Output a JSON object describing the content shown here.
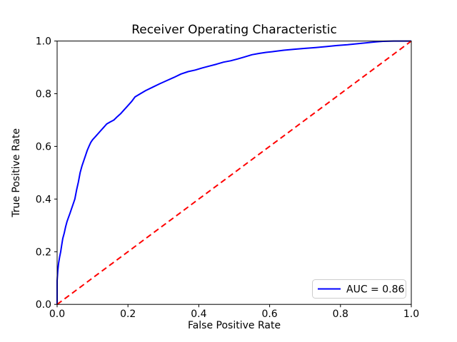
{
  "chart_data": {
    "type": "line",
    "title": "Receiver Operating Characteristic",
    "xlabel": "False Positive Rate",
    "ylabel": "True Positive Rate",
    "xlim": [
      0.0,
      1.0
    ],
    "ylim": [
      0.0,
      1.0
    ],
    "xticks": [
      0.0,
      0.2,
      0.4,
      0.6,
      0.8,
      1.0
    ],
    "ytick_labels": [
      "0.0",
      "0.2",
      "0.4",
      "0.6",
      "0.8",
      "1.0"
    ],
    "xtick_labels": [
      "0.0",
      "0.2",
      "0.4",
      "0.6",
      "0.8",
      "1.0"
    ],
    "yticks": [
      0.0,
      0.2,
      0.4,
      0.6,
      0.8,
      1.0
    ],
    "grid": false,
    "legend": {
      "position": "lower right",
      "label": "AUC = 0.86"
    },
    "colors": {
      "roc_curve": "#0000ff",
      "chance_line": "#ff0000",
      "spine": "#000000",
      "legend_border": "#cccccc",
      "background": "#ffffff"
    },
    "series": [
      {
        "name": "ROC curve",
        "color": "#0000ff",
        "style": "solid",
        "auc": 0.86,
        "points": [
          [
            0.0,
            0.0
          ],
          [
            0.0,
            0.09
          ],
          [
            0.002,
            0.13
          ],
          [
            0.004,
            0.155
          ],
          [
            0.007,
            0.18
          ],
          [
            0.01,
            0.2
          ],
          [
            0.013,
            0.225
          ],
          [
            0.016,
            0.25
          ],
          [
            0.02,
            0.27
          ],
          [
            0.024,
            0.295
          ],
          [
            0.028,
            0.315
          ],
          [
            0.032,
            0.33
          ],
          [
            0.036,
            0.345
          ],
          [
            0.04,
            0.36
          ],
          [
            0.045,
            0.38
          ],
          [
            0.05,
            0.4
          ],
          [
            0.055,
            0.435
          ],
          [
            0.06,
            0.465
          ],
          [
            0.065,
            0.5
          ],
          [
            0.07,
            0.525
          ],
          [
            0.075,
            0.545
          ],
          [
            0.08,
            0.565
          ],
          [
            0.085,
            0.585
          ],
          [
            0.09,
            0.6
          ],
          [
            0.095,
            0.615
          ],
          [
            0.1,
            0.625
          ],
          [
            0.11,
            0.64
          ],
          [
            0.12,
            0.655
          ],
          [
            0.13,
            0.67
          ],
          [
            0.14,
            0.685
          ],
          [
            0.15,
            0.693
          ],
          [
            0.16,
            0.7
          ],
          [
            0.17,
            0.713
          ],
          [
            0.18,
            0.725
          ],
          [
            0.19,
            0.74
          ],
          [
            0.2,
            0.755
          ],
          [
            0.21,
            0.77
          ],
          [
            0.22,
            0.788
          ],
          [
            0.235,
            0.8
          ],
          [
            0.25,
            0.812
          ],
          [
            0.27,
            0.825
          ],
          [
            0.29,
            0.838
          ],
          [
            0.31,
            0.85
          ],
          [
            0.33,
            0.862
          ],
          [
            0.35,
            0.875
          ],
          [
            0.37,
            0.884
          ],
          [
            0.39,
            0.89
          ],
          [
            0.41,
            0.898
          ],
          [
            0.43,
            0.905
          ],
          [
            0.45,
            0.912
          ],
          [
            0.47,
            0.92
          ],
          [
            0.49,
            0.925
          ],
          [
            0.51,
            0.932
          ],
          [
            0.53,
            0.94
          ],
          [
            0.55,
            0.948
          ],
          [
            0.57,
            0.953
          ],
          [
            0.59,
            0.957
          ],
          [
            0.61,
            0.96
          ],
          [
            0.64,
            0.965
          ],
          [
            0.67,
            0.969
          ],
          [
            0.7,
            0.972
          ],
          [
            0.73,
            0.975
          ],
          [
            0.76,
            0.979
          ],
          [
            0.79,
            0.983
          ],
          [
            0.82,
            0.986
          ],
          [
            0.85,
            0.99
          ],
          [
            0.88,
            0.994
          ],
          [
            0.9,
            0.997
          ],
          [
            0.92,
            0.999
          ],
          [
            0.95,
            1.0
          ],
          [
            1.0,
            1.0
          ]
        ]
      },
      {
        "name": "chance diagonal",
        "color": "#ff0000",
        "style": "dashed",
        "points": [
          [
            0.0,
            0.0
          ],
          [
            1.0,
            1.0
          ]
        ]
      }
    ]
  }
}
